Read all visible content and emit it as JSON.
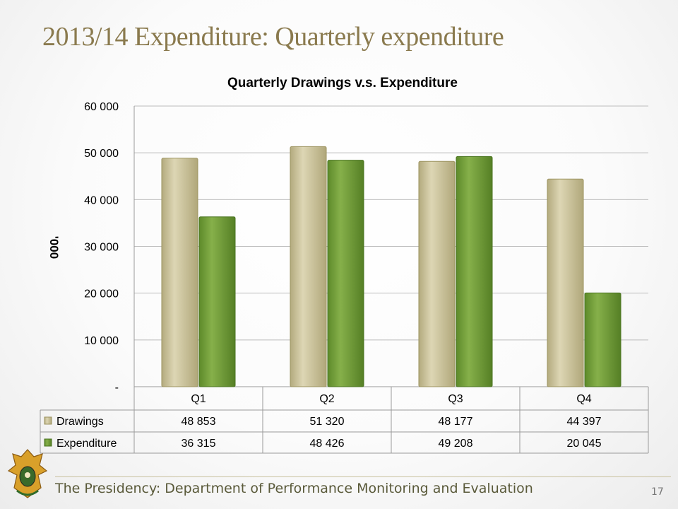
{
  "slide": {
    "title": "2013/14 Expenditure: Quarterly expenditure",
    "footer": "The Presidency:  Department of Performance Monitoring and Evaluation",
    "page_number": "17"
  },
  "colors": {
    "drawings": "#c9c19a",
    "expenditure": "#76a03a",
    "title": "#8a7a4e"
  },
  "chart_data": {
    "type": "bar",
    "title": "Quarterly Drawings v.s. Expenditure",
    "ylabel": "'000",
    "xlabel": "",
    "categories": [
      "Q1",
      "Q2",
      "Q3",
      "Q4"
    ],
    "series": [
      {
        "name": "Drawings",
        "values": [
          48853,
          51320,
          48177,
          44397
        ]
      },
      {
        "name": "Expenditure",
        "values": [
          36315,
          48426,
          49208,
          20045
        ]
      }
    ],
    "ylim": [
      0,
      60000
    ],
    "yticks": [
      0,
      10000,
      20000,
      30000,
      40000,
      50000,
      60000
    ],
    "ytick_labels": [
      "-",
      "10 000",
      "20 000",
      "30 000",
      "40 000",
      "50 000",
      "60 000"
    ],
    "table_values": [
      [
        "48 853",
        "51 320",
        "48 177",
        "44 397"
      ],
      [
        "36 315",
        "48 426",
        "49 208",
        "20 045"
      ]
    ],
    "grid": true,
    "legend": "data table"
  }
}
